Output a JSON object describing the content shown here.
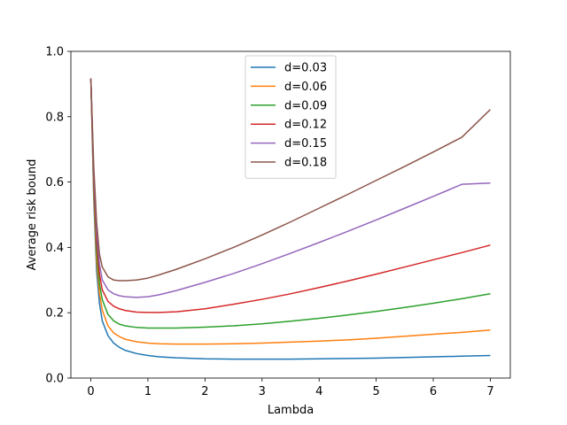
{
  "chart_data": {
    "type": "line",
    "title": "",
    "xlabel": "Lambda",
    "ylabel": "Average risk bound",
    "xlim": [
      -0.35,
      7.35
    ],
    "ylim": [
      0.0,
      1.0
    ],
    "xticks": [
      0,
      1,
      2,
      3,
      4,
      5,
      6,
      7
    ],
    "yticks": [
      0.0,
      0.2,
      0.4,
      0.6,
      0.8,
      1.0
    ],
    "xtick_labels": [
      "0",
      "1",
      "2",
      "3",
      "4",
      "5",
      "6",
      "7"
    ],
    "ytick_labels": [
      "0.0",
      "0.2",
      "0.4",
      "0.6",
      "0.8",
      "1.0"
    ],
    "grid": false,
    "legend_position": "top-center",
    "x": [
      0,
      0.05,
      0.1,
      0.15,
      0.2,
      0.3,
      0.4,
      0.5,
      0.6,
      0.8,
      1.0,
      1.2,
      1.5,
      2.0,
      2.5,
      3.0,
      3.5,
      4.0,
      4.5,
      5.0,
      5.5,
      6.0,
      6.5,
      7.0
    ],
    "series": [
      {
        "name": "d=0.03",
        "color": "#1f77b4",
        "values": [
          0.917,
          0.55,
          0.33,
          0.23,
          0.175,
          0.13,
          0.107,
          0.094,
          0.085,
          0.075,
          0.069,
          0.065,
          0.062,
          0.059,
          0.058,
          0.058,
          0.058,
          0.059,
          0.06,
          0.061,
          0.063,
          0.065,
          0.067,
          0.069
        ]
      },
      {
        "name": "d=0.06",
        "color": "#ff7f0e",
        "values": [
          0.917,
          0.57,
          0.36,
          0.26,
          0.208,
          0.16,
          0.138,
          0.127,
          0.119,
          0.111,
          0.107,
          0.105,
          0.104,
          0.104,
          0.105,
          0.107,
          0.11,
          0.113,
          0.117,
          0.122,
          0.128,
          0.134,
          0.14,
          0.147
        ]
      },
      {
        "name": "d=0.09",
        "color": "#2ca02c",
        "values": [
          0.917,
          0.59,
          0.39,
          0.29,
          0.24,
          0.195,
          0.175,
          0.165,
          0.16,
          0.155,
          0.153,
          0.153,
          0.153,
          0.156,
          0.16,
          0.166,
          0.174,
          0.183,
          0.193,
          0.204,
          0.216,
          0.229,
          0.243,
          0.258
        ]
      },
      {
        "name": "d=0.12",
        "color": "#d62728",
        "values": [
          0.917,
          0.61,
          0.42,
          0.32,
          0.27,
          0.235,
          0.22,
          0.212,
          0.207,
          0.202,
          0.201,
          0.201,
          0.203,
          0.212,
          0.226,
          0.241,
          0.258,
          0.277,
          0.297,
          0.318,
          0.34,
          0.362,
          0.384,
          0.407
        ]
      },
      {
        "name": "d=0.15",
        "color": "#9467bd",
        "values": [
          0.917,
          0.63,
          0.45,
          0.35,
          0.3,
          0.27,
          0.258,
          0.252,
          0.249,
          0.247,
          0.249,
          0.255,
          0.268,
          0.293,
          0.32,
          0.35,
          0.382,
          0.415,
          0.449,
          0.484,
          0.52,
          0.556,
          0.593,
          0.597
        ]
      },
      {
        "name": "d=0.18",
        "color": "#8c564b",
        "values": [
          0.917,
          0.65,
          0.48,
          0.38,
          0.34,
          0.31,
          0.3,
          0.298,
          0.298,
          0.3,
          0.306,
          0.316,
          0.333,
          0.365,
          0.4,
          0.438,
          0.478,
          0.52,
          0.562,
          0.605,
          0.648,
          0.692,
          0.737,
          0.822
        ]
      }
    ]
  }
}
